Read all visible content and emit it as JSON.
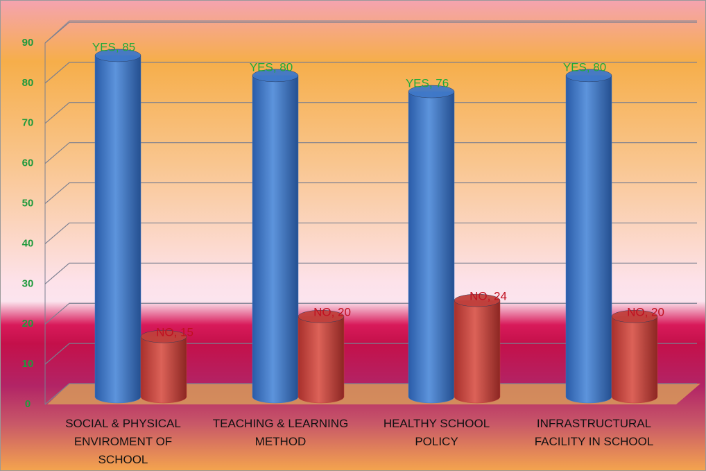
{
  "chart_data": {
    "type": "bar",
    "categories": [
      "SOCIAL & PHYSICAL ENVIROMENT OF SCHOOL",
      "TEACHING & LEARNING METHOD",
      "HEALTHY SCHOOL POLICY",
      "INFRASTRUCTURAL FACILITY IN SCHOOL"
    ],
    "series": [
      {
        "name": "YES",
        "color": "#3f78c8",
        "values": [
          85,
          80,
          76,
          80
        ],
        "value_labels": [
          "YES, 85",
          "YES, 80",
          "YES, 76",
          "YES, 80"
        ]
      },
      {
        "name": "NO",
        "color": "#c0403c",
        "values": [
          15,
          20,
          24,
          20
        ],
        "value_labels": [
          "NO, 15",
          "NO, 20",
          "NO, 24",
          "NO, 20"
        ]
      }
    ],
    "ylim": [
      0,
      90
    ],
    "yticks": [
      0,
      10,
      20,
      30,
      40,
      50,
      60,
      70,
      80,
      90
    ],
    "grid": true
  }
}
